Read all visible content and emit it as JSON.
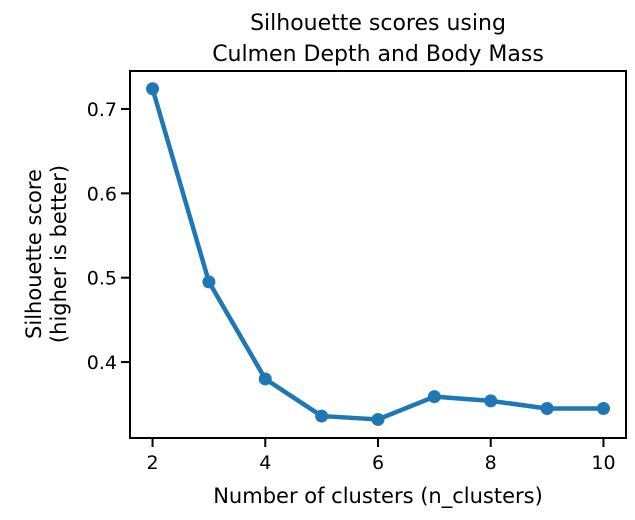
{
  "chart_data": {
    "type": "line",
    "title": [
      "Silhouette scores using",
      "Culmen Depth and Body Mass"
    ],
    "xlabel": "Number of clusters (n_clusters)",
    "ylabel": [
      "Silhouette score",
      "(higher is better)"
    ],
    "xlim": [
      1.6,
      10.4
    ],
    "ylim": [
      0.31,
      0.745
    ],
    "xticks": [
      2,
      4,
      6,
      8,
      10
    ],
    "yticks": [
      0.4,
      0.5,
      0.6,
      0.7
    ],
    "grid": false,
    "series": [
      {
        "x": [
          2,
          3,
          4,
          5,
          6,
          7,
          8,
          9,
          10
        ],
        "values": [
          0.724,
          0.495,
          0.38,
          0.336,
          0.332,
          0.359,
          0.354,
          0.345,
          0.345
        ],
        "color": "#1f77b4"
      }
    ]
  }
}
